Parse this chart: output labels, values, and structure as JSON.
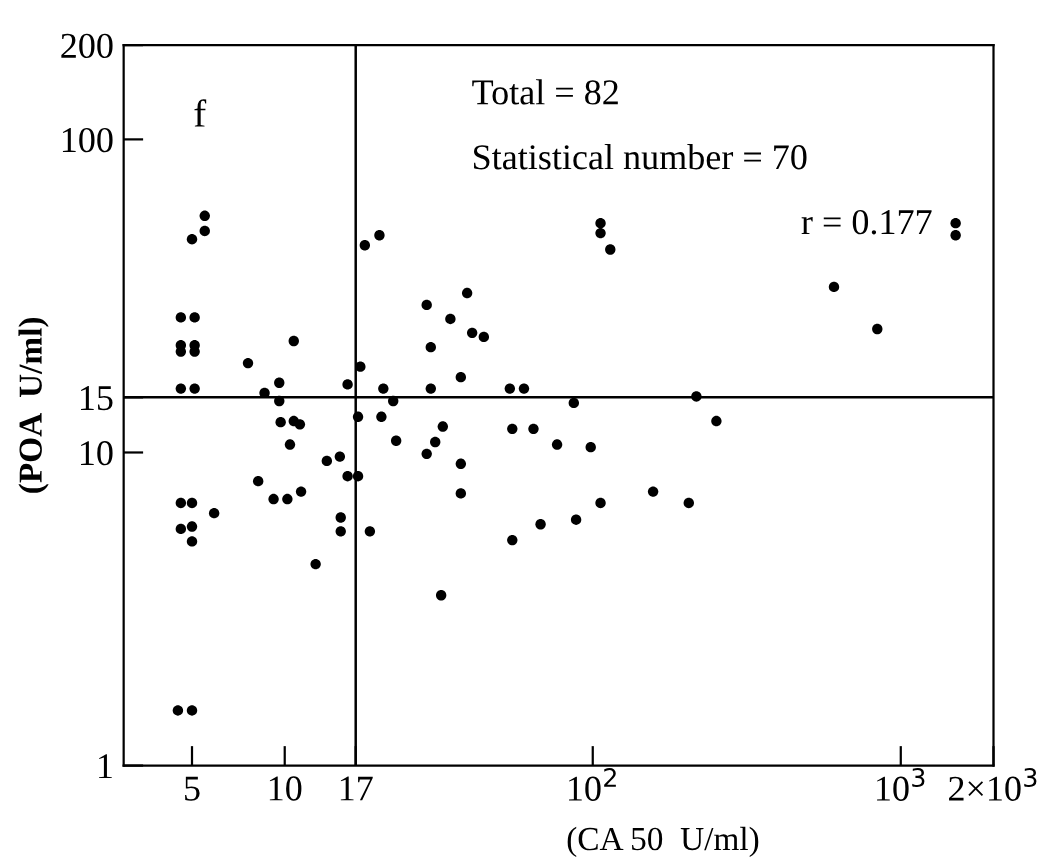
{
  "chart_data": {
    "type": "scatter",
    "xlabel": "(CA 50  U/ml)",
    "ylabel": "(POA  U/ml)",
    "annotations": [
      "f",
      "Total = 82",
      "Statistical number = 70",
      "r = 0.177"
    ],
    "x": [
      5,
      5.5,
      5.5,
      4.6,
      5.1,
      4.6,
      5.1,
      4.6,
      5.1,
      4.6,
      5.1,
      7.6,
      8.6,
      9.6,
      9.6,
      9.7,
      10.7,
      10.7,
      11.2,
      10.4,
      13.7,
      15.1,
      16.0,
      17.6,
      18.2,
      20.3,
      17.3,
      20.9,
      22.5,
      20.6,
      23,
      28.9,
      29.8,
      29.8,
      34.5,
      39.1,
      40.6,
      44.3,
      37.3,
      32.6,
      30.8,
      28.9,
      37.3,
      53.8,
      59.8,
      54.8,
      64.2,
      106,
      106,
      114,
      86.8,
      76.6,
      98.5,
      217,
      252,
      607,
      839,
      1507,
      1507,
      8.2,
      9.2,
      10.2,
      11.3,
      5.9,
      4.6,
      5.0,
      4.6,
      5.0,
      5.0,
      4.5,
      5.0,
      12.6,
      16.0,
      15.2,
      15.2,
      17.3,
      18.9,
      37.3,
      32.2,
      54.8,
      67.7,
      88.3,
      106,
      157,
      205
    ],
    "values": [
      48,
      51,
      57,
      27,
      27,
      22,
      22,
      21,
      21,
      16,
      16,
      19.3,
      15.5,
      16.7,
      14.6,
      12.5,
      22.7,
      12.6,
      12.3,
      10.6,
      9.4,
      9.7,
      16.5,
      18.8,
      45.9,
      49.4,
      13.0,
      16.0,
      14.6,
      13.0,
      10.9,
      29.6,
      21.7,
      16.0,
      26.7,
      32.3,
      24.1,
      23.4,
      17.4,
      12.1,
      10.8,
      9.9,
      9.2,
      16.0,
      16.0,
      11.9,
      11.9,
      54,
      50.2,
      44.5,
      14.4,
      10.6,
      10.4,
      15.1,
      12.6,
      33.8,
      24.8,
      54,
      49.4,
      8.1,
      7.1,
      7.1,
      7.5,
      6.4,
      6.9,
      6.9,
      5.7,
      5.8,
      5.2,
      1.5,
      1.5,
      4.4,
      8.4,
      6.2,
      5.6,
      8.4,
      5.6,
      7.4,
      3.5,
      5.25,
      5.9,
      6.1,
      6.9,
      7.5,
      6.9
    ],
    "color": "#000000",
    "marker": "circle",
    "log": "xy",
    "xlim": [
      3,
      2000
    ],
    "xticks": [
      5,
      10,
      17,
      {
        "value": 100,
        "label": "10$^{2}$"
      },
      {
        "value": 1000,
        "label": "10$^{3}$"
      },
      {
        "value": 2000,
        "label": "2×10$^{3}$"
      }
    ],
    "ylim": [
      1,
      200
    ],
    "yticks": [
      1,
      10,
      15,
      100,
      200
    ],
    "ref_lines": [
      {
        "axis": "x",
        "value": 17,
        "color": "#000000"
      },
      {
        "axis": "y",
        "value": 15,
        "color": "#000000"
      }
    ],
    "grid": false,
    "legend": false
  }
}
